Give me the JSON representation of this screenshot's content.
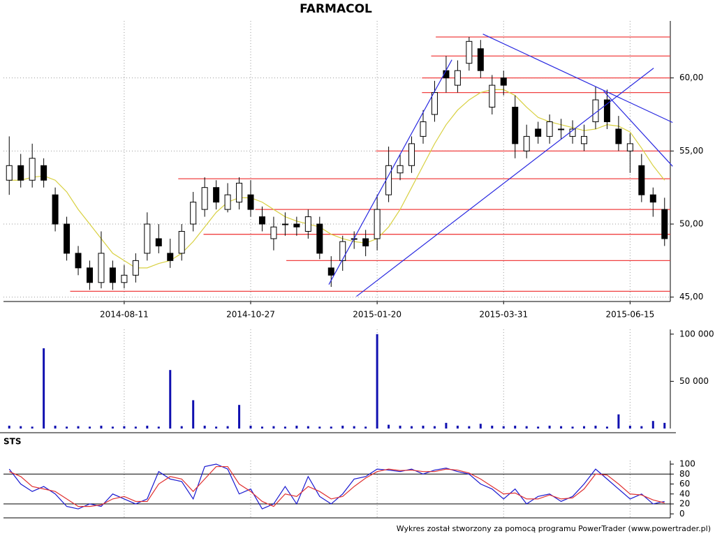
{
  "chart_data": [
    {
      "type": "candlestick",
      "title": "FARMACOL",
      "xlim": [
        -0.5,
        57.5
      ],
      "xticks": [
        {
          "value": 10,
          "label": "2014-08-11"
        },
        {
          "value": 21,
          "label": "2014-10-27"
        },
        {
          "value": 32,
          "label": "2015-01-20"
        },
        {
          "value": 43,
          "label": "2015-03-31"
        },
        {
          "value": 54,
          "label": "2015-06-15"
        }
      ],
      "ylim": [
        44.7,
        63.9
      ],
      "yticks": [
        {
          "value": 45,
          "label": "45,00"
        },
        {
          "value": 50,
          "label": "50,00"
        },
        {
          "value": 55,
          "label": "55,00"
        },
        {
          "value": 60,
          "label": "60,00"
        }
      ],
      "grid": true,
      "open": [
        53,
        54,
        53,
        54,
        52,
        50,
        48,
        47,
        46,
        47,
        46,
        46.5,
        48,
        49,
        48,
        48,
        50,
        51,
        52.5,
        51,
        51.5,
        52,
        50.5,
        49,
        50,
        50,
        49.5,
        50,
        47,
        47.5,
        49,
        49,
        49,
        52,
        53.5,
        54,
        56,
        57.5,
        60.5,
        59.5,
        61,
        62,
        58,
        60,
        58,
        55,
        56.5,
        56,
        56.5,
        56,
        55.5,
        57,
        58.5,
        56.5,
        55,
        54,
        52,
        51
      ],
      "high": [
        56,
        54.8,
        55.5,
        54.5,
        52.5,
        50.5,
        48.5,
        47.5,
        49.5,
        47.5,
        47.2,
        48,
        50.8,
        50,
        49,
        50,
        52.2,
        53.2,
        53,
        52.8,
        53.2,
        53,
        51.2,
        50.5,
        50.8,
        50.5,
        51,
        50.5,
        47.8,
        49.2,
        49.5,
        49.6,
        52,
        55.3,
        54.8,
        56,
        57.8,
        59.8,
        61.5,
        61.2,
        62.8,
        62.6,
        60.2,
        60.5,
        58.8,
        56.8,
        57,
        57.5,
        57.2,
        57.1,
        56.8,
        59.4,
        59.2,
        57.4,
        56.2,
        54.8,
        52.5,
        51.8
      ],
      "low": [
        52,
        52.5,
        52.5,
        52.5,
        49.5,
        47.5,
        46.5,
        45.5,
        45.6,
        45.5,
        45.6,
        46,
        47.5,
        48,
        47,
        47.5,
        49.5,
        50.5,
        51,
        50.8,
        51,
        50.5,
        49.5,
        48.2,
        49.2,
        49.2,
        49,
        47.6,
        45.7,
        46.8,
        48.3,
        47.8,
        48.2,
        51.5,
        53,
        53.5,
        55.5,
        57,
        59,
        59,
        60.5,
        60,
        57.5,
        58.8,
        54.5,
        54.5,
        55.5,
        55.5,
        55.8,
        55.5,
        55,
        56.5,
        56.5,
        55,
        53.5,
        51.5,
        50.5,
        48.5
      ],
      "close": [
        54,
        53,
        54.5,
        53,
        50,
        48,
        47,
        46,
        48,
        46,
        46.5,
        47.5,
        50,
        48.5,
        47.5,
        49.5,
        51.5,
        52.5,
        51.5,
        52,
        52.8,
        51,
        50,
        49.8,
        50,
        49.8,
        50.5,
        48,
        46.5,
        48.8,
        49,
        48.5,
        51,
        54,
        54,
        55.5,
        57,
        59,
        60,
        60.5,
        62.5,
        60.5,
        59.5,
        59.5,
        55.5,
        56,
        56,
        57,
        56.5,
        56.5,
        56,
        58.5,
        57,
        55.5,
        55.5,
        52,
        51.5,
        49
      ],
      "ma": {
        "color": "#d8d040",
        "values": [
          53,
          53,
          53.2,
          53.3,
          53,
          52.2,
          51,
          50,
          49,
          48,
          47.5,
          47,
          47,
          47.3,
          47.5,
          48,
          48.8,
          49.8,
          50.8,
          51.5,
          51.8,
          51.8,
          51.5,
          51,
          50.5,
          50.2,
          50,
          49.8,
          49.3,
          49,
          48.8,
          48.7,
          49,
          49.8,
          51,
          52.5,
          54,
          55.5,
          56.8,
          57.8,
          58.5,
          59,
          59.2,
          59.2,
          58.8,
          58,
          57.3,
          57,
          56.8,
          56.6,
          56.4,
          56.5,
          56.8,
          56.7,
          56.3,
          55.2,
          54,
          53
        ]
      },
      "levels": {
        "color": "#f04040",
        "items": [
          {
            "value": 62.8,
            "from": 37.1
          },
          {
            "value": 61.5,
            "from": 36.7
          },
          {
            "value": 60.0,
            "from": 35.9
          },
          {
            "value": 59.0,
            "from": 35.9
          },
          {
            "value": 55.0,
            "from": 31.9
          },
          {
            "value": 53.1,
            "from": 14.7
          },
          {
            "value": 51.0,
            "from": 21.4
          },
          {
            "value": 49.3,
            "from": 16.9
          },
          {
            "value": 47.5,
            "from": 24.1
          },
          {
            "value": 45.4,
            "from": 5.3
          }
        ]
      },
      "trendlines": {
        "color": "#2828e0",
        "items": [
          {
            "x": [
              27.8,
              38.5
            ],
            "y": [
              45.86,
              61.24
            ]
          },
          {
            "x": [
              30.2,
              56.05
            ],
            "y": [
              45.05,
              60.67
            ]
          },
          {
            "x": [
              41.2,
              57.7
            ],
            "y": [
              63.0,
              56.95
            ]
          },
          {
            "x": [
              51.7,
              57.7
            ],
            "y": [
              59.1,
              53.95
            ]
          }
        ]
      }
    },
    {
      "type": "bar",
      "color": "#1010b0",
      "ylim": [
        0,
        105000
      ],
      "yticks": [
        {
          "value": 50000,
          "label": "50 000"
        },
        {
          "value": 100000,
          "label": "100 000"
        }
      ],
      "grid": false,
      "values": [
        3000,
        2500,
        2000,
        85000,
        3000,
        2000,
        2500,
        2000,
        3000,
        2000,
        2500,
        2000,
        3000,
        2000,
        62000,
        2500,
        30000,
        3000,
        2000,
        2500,
        25000,
        3000,
        2000,
        2500,
        2000,
        3000,
        2500,
        2000,
        2000,
        3000,
        2500,
        2000,
        100000,
        4000,
        3000,
        2500,
        3000,
        2500,
        6000,
        3000,
        2500,
        5000,
        3000,
        2500,
        3000,
        2500,
        2000,
        3000,
        2500,
        2000,
        2500,
        3000,
        2000,
        15000,
        3000,
        2500,
        8000,
        6000
      ]
    },
    {
      "type": "line",
      "title": "STS",
      "ylim": [
        -8,
        107
      ],
      "yticks": [
        0,
        20,
        40,
        60,
        80,
        100
      ],
      "grid": false,
      "levels": [
        20,
        80
      ],
      "series": [
        {
          "color": "#1818d0",
          "values": [
            90,
            60,
            45,
            55,
            40,
            15,
            10,
            20,
            15,
            40,
            30,
            20,
            30,
            85,
            70,
            65,
            30,
            95,
            100,
            90,
            40,
            50,
            10,
            20,
            55,
            20,
            75,
            35,
            20,
            40,
            70,
            75,
            90,
            88,
            85,
            90,
            80,
            88,
            92,
            85,
            80,
            60,
            50,
            30,
            50,
            20,
            35,
            40,
            25,
            35,
            60,
            90,
            70,
            50,
            30,
            40,
            20,
            25
          ]
        },
        {
          "color": "#e03030",
          "values": [
            85,
            75,
            55,
            50,
            45,
            30,
            15,
            15,
            18,
            30,
            35,
            25,
            25,
            60,
            75,
            70,
            45,
            70,
            95,
            95,
            60,
            45,
            25,
            15,
            40,
            35,
            55,
            45,
            30,
            35,
            55,
            72,
            85,
            90,
            87,
            88,
            85,
            85,
            90,
            88,
            82,
            70,
            55,
            40,
            42,
            30,
            30,
            38,
            30,
            32,
            50,
            80,
            78,
            60,
            40,
            38,
            28,
            22
          ]
        }
      ]
    }
  ],
  "footer": "Wykres został stworzony za pomocą programu PowerTrader (www.powertrader.pl)"
}
